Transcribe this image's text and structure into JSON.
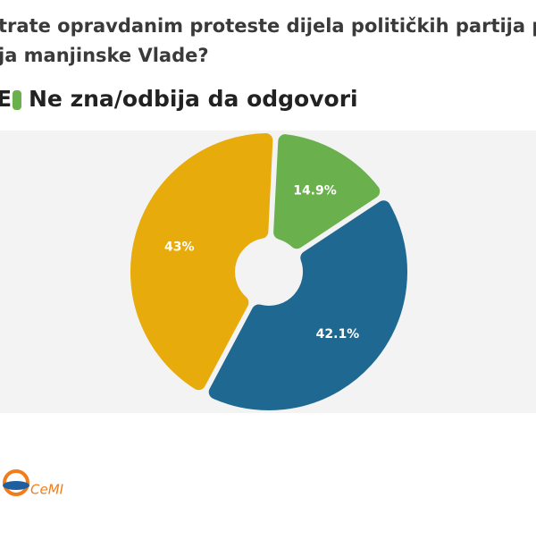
{
  "chart_data": {
    "type": "pie",
    "title_lines": [
      "trate opravdanim proteste dijela političkih partija p",
      "ja manjinske Vlade?"
    ],
    "legend": [
      {
        "label": "E"
      },
      {
        "label": "Ne zna/odbija da odgovori",
        "color": "#6ab04c"
      }
    ],
    "values": [
      14.9,
      42.1,
      43
    ],
    "value_labels": [
      "14.9%",
      "42.1%",
      "43%"
    ],
    "colors": [
      "#6ab04c",
      "#1f6891",
      "#e8ab0c"
    ],
    "logo": "CeMI"
  }
}
